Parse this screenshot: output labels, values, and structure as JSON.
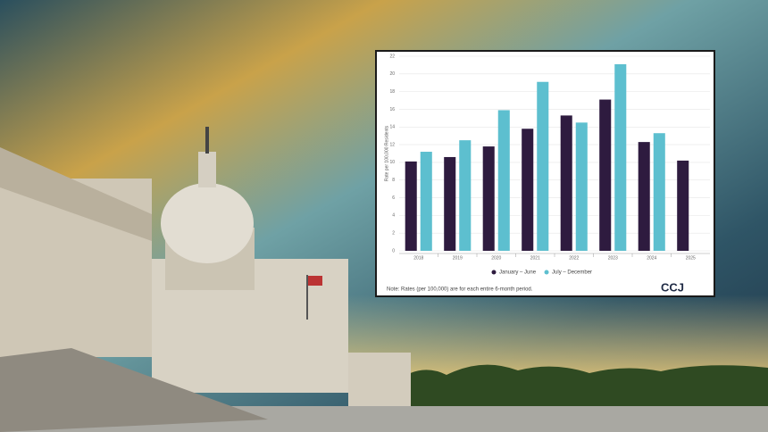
{
  "chart_data": {
    "type": "bar",
    "y_label": "Rate per 100,000 Residents",
    "categories": [
      "2018",
      "2019",
      "2020",
      "2021",
      "2022",
      "2023",
      "2024",
      "2025"
    ],
    "series": [
      {
        "name": "January – June",
        "color": "#2e1b3f",
        "values": [
          10.1,
          10.6,
          11.8,
          13.8,
          15.3,
          17.1,
          12.3,
          10.2
        ]
      },
      {
        "name": "July – December",
        "color": "#5dbfcf",
        "values": [
          11.2,
          12.5,
          15.9,
          19.1,
          14.5,
          21.1,
          13.3,
          null
        ]
      }
    ],
    "ylim": [
      0,
      22
    ],
    "yticks": [
      0,
      2,
      4,
      6,
      8,
      10,
      12,
      14,
      16,
      18,
      20,
      22
    ],
    "grid": true,
    "note": "Note: Rates (per 100,000) are for each entire 6-month period.",
    "logo": "CCJ"
  }
}
